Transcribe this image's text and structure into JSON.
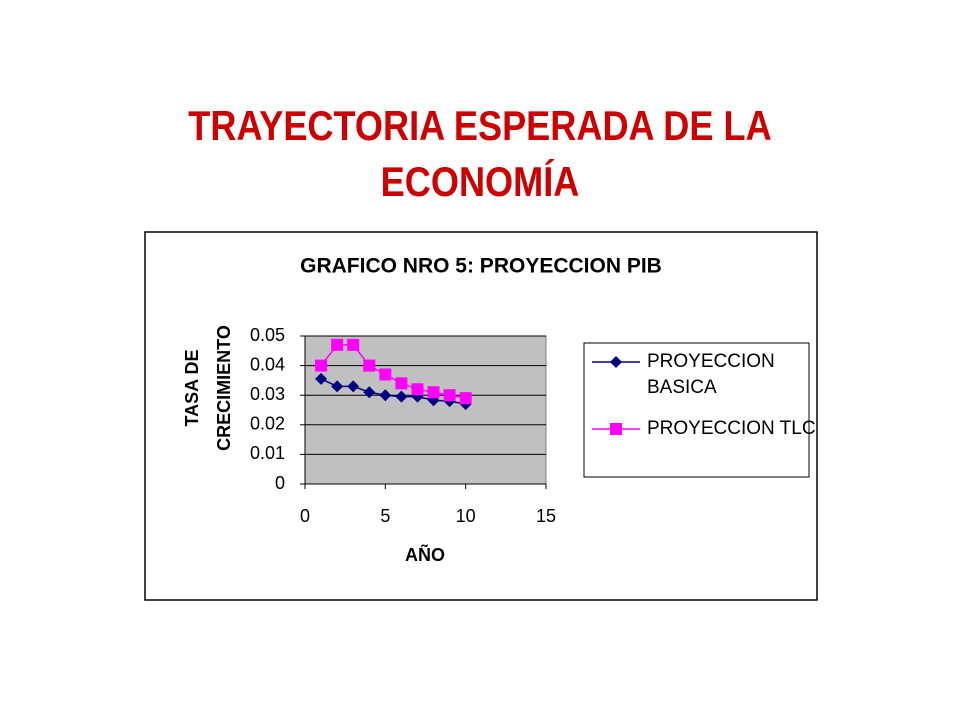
{
  "slide_title": "TRAYECTORIA ESPERADA DE LA ECONOMÍA",
  "chart_data": {
    "type": "line",
    "title": "GRAFICO NRO 5: PROYECCION PIB",
    "x_label": "AÑO",
    "y_label": "TASA DE CRECIMIENTO",
    "x": [
      1,
      2,
      3,
      4,
      5,
      6,
      7,
      8,
      9,
      10
    ],
    "series": [
      {
        "name": "PROYECCION BASICA",
        "color": "#000080",
        "marker": "diamond",
        "values": [
          0.0355,
          0.033,
          0.033,
          0.031,
          0.03,
          0.0295,
          0.0295,
          0.0283,
          0.028,
          0.027
        ]
      },
      {
        "name": "PROYECCION TLC",
        "color": "#ff00ff",
        "marker": "square",
        "values": [
          0.04,
          0.047,
          0.047,
          0.04,
          0.037,
          0.034,
          0.032,
          0.031,
          0.03,
          0.029
        ]
      }
    ],
    "xlim": [
      0,
      15
    ],
    "xticks": [
      0,
      5,
      10,
      15
    ],
    "ylim": [
      0,
      0.05
    ],
    "yticks": [
      0,
      0.01,
      0.02,
      0.03,
      0.04,
      0.05
    ],
    "grid": true,
    "legend": "right",
    "plot_background": "#c0c0c0"
  }
}
